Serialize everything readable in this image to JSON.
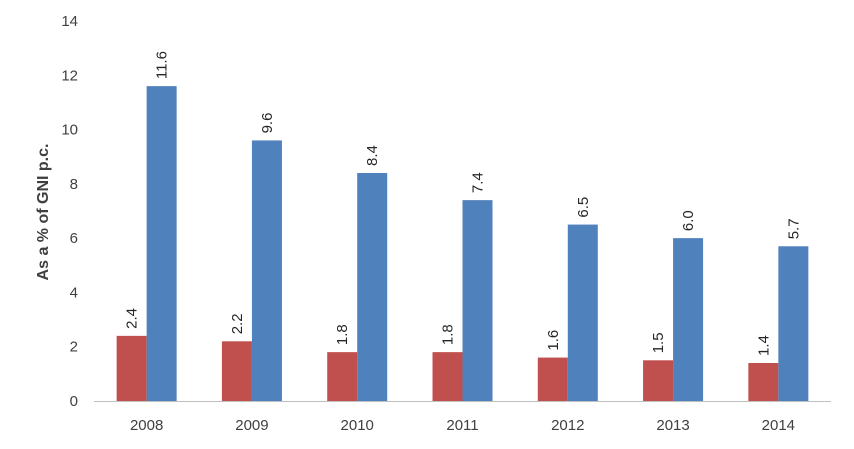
{
  "chart_data": {
    "type": "bar",
    "categories": [
      "2008",
      "2009",
      "2010",
      "2011",
      "2012",
      "2013",
      "2014"
    ],
    "series": [
      {
        "values": [
          2.4,
          2.2,
          1.8,
          1.8,
          1.6,
          1.5,
          1.4
        ],
        "color": "#C0504D"
      },
      {
        "values": [
          11.6,
          9.6,
          8.4,
          7.4,
          6.5,
          6.0,
          5.7
        ],
        "color": "#4F81BD"
      }
    ],
    "data_labels": [
      [
        "2.4",
        "2.2",
        "1.8",
        "1.8",
        "1.6",
        "1.5",
        "1.4"
      ],
      [
        "11.6",
        "9.6",
        "8.4",
        "7.4",
        "6.5",
        "6.0",
        "5.7"
      ]
    ],
    "ylabel": "As a % of GNI p.c.",
    "ylim": [
      0,
      14
    ],
    "yticks": [
      "0",
      "2",
      "4",
      "6",
      "8",
      "10",
      "12",
      "14"
    ],
    "grid": false,
    "legend": "none"
  }
}
